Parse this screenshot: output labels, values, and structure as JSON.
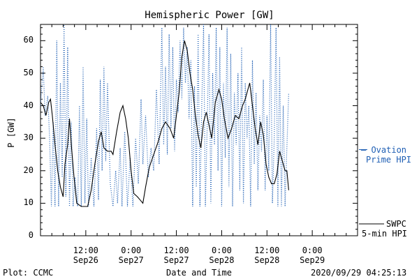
{
  "chart_data": {
    "type": "line",
    "title": "Hemispheric Power [GW]",
    "ylabel": "P [GW]",
    "xlabel": "Date and Time",
    "ylim": [
      0,
      65
    ],
    "yticks": [
      0,
      10,
      20,
      30,
      40,
      50,
      60
    ],
    "xlim_hours": [
      0,
      3.5
    ],
    "xticks": [
      {
        "time": "12:00",
        "date": "Sep26",
        "h": 0.5
      },
      {
        "time": "0:00",
        "date": "Sep27",
        "h": 1.0
      },
      {
        "time": "12:00",
        "date": "Sep27",
        "h": 1.5
      },
      {
        "time": "0:00",
        "date": "Sep28",
        "h": 2.0
      },
      {
        "time": "12:00",
        "date": "Sep28",
        "h": 2.5
      },
      {
        "time": "0:00",
        "date": "Sep29",
        "h": 3.0
      }
    ],
    "grid": false,
    "series": [
      {
        "name": "SWPC 5-min HPI",
        "color": "#000000",
        "style": "solid",
        "points": [
          [
            0.0,
            41
          ],
          [
            0.03,
            40
          ],
          [
            0.06,
            37
          ],
          [
            0.09,
            41
          ],
          [
            0.11,
            42
          ],
          [
            0.13,
            37
          ],
          [
            0.16,
            28
          ],
          [
            0.19,
            20
          ],
          [
            0.22,
            15
          ],
          [
            0.25,
            12
          ],
          [
            0.27,
            22
          ],
          [
            0.3,
            28
          ],
          [
            0.32,
            36
          ],
          [
            0.34,
            28
          ],
          [
            0.37,
            18
          ],
          [
            0.4,
            10
          ],
          [
            0.45,
            9
          ],
          [
            0.52,
            9
          ],
          [
            0.56,
            14
          ],
          [
            0.6,
            22
          ],
          [
            0.64,
            29
          ],
          [
            0.67,
            32
          ],
          [
            0.7,
            27
          ],
          [
            0.74,
            26
          ],
          [
            0.78,
            26
          ],
          [
            0.8,
            25
          ],
          [
            0.84,
            32
          ],
          [
            0.88,
            38
          ],
          [
            0.91,
            40
          ],
          [
            0.94,
            36
          ],
          [
            0.97,
            30
          ],
          [
            1.0,
            20
          ],
          [
            1.03,
            13
          ],
          [
            1.07,
            12
          ],
          [
            1.1,
            11
          ],
          [
            1.13,
            10
          ],
          [
            1.16,
            15
          ],
          [
            1.2,
            21
          ],
          [
            1.25,
            25
          ],
          [
            1.3,
            29
          ],
          [
            1.34,
            33
          ],
          [
            1.38,
            35
          ],
          [
            1.43,
            33
          ],
          [
            1.47,
            30
          ],
          [
            1.5,
            37
          ],
          [
            1.53,
            44
          ],
          [
            1.56,
            55
          ],
          [
            1.59,
            60
          ],
          [
            1.62,
            57
          ],
          [
            1.65,
            50
          ],
          [
            1.68,
            45
          ],
          [
            1.71,
            37
          ],
          [
            1.74,
            31
          ],
          [
            1.77,
            27
          ],
          [
            1.8,
            35
          ],
          [
            1.83,
            38
          ],
          [
            1.86,
            34
          ],
          [
            1.89,
            30
          ],
          [
            1.93,
            41
          ],
          [
            1.97,
            45
          ],
          [
            2.0,
            42
          ],
          [
            2.03,
            36
          ],
          [
            2.07,
            30
          ],
          [
            2.11,
            33
          ],
          [
            2.15,
            37
          ],
          [
            2.19,
            36
          ],
          [
            2.23,
            40
          ],
          [
            2.26,
            42
          ],
          [
            2.29,
            45
          ],
          [
            2.31,
            47
          ],
          [
            2.34,
            40
          ],
          [
            2.37,
            33
          ],
          [
            2.4,
            28
          ],
          [
            2.43,
            35
          ],
          [
            2.46,
            31
          ],
          [
            2.49,
            22
          ],
          [
            2.52,
            18
          ],
          [
            2.55,
            16
          ],
          [
            2.58,
            16
          ],
          [
            2.61,
            19
          ],
          [
            2.64,
            26
          ],
          [
            2.67,
            23
          ],
          [
            2.7,
            20
          ],
          [
            2.72,
            20
          ],
          [
            2.74,
            14
          ]
        ]
      },
      {
        "name": "Ovation Prime HPI",
        "color": "#1f5fb4",
        "style": "dotted",
        "points": [
          [
            0.0,
            40
          ],
          [
            0.03,
            52
          ],
          [
            0.05,
            37
          ],
          [
            0.08,
            43
          ],
          [
            0.1,
            30
          ],
          [
            0.12,
            9
          ],
          [
            0.14,
            35
          ],
          [
            0.16,
            9
          ],
          [
            0.18,
            60
          ],
          [
            0.2,
            9
          ],
          [
            0.22,
            47
          ],
          [
            0.24,
            18
          ],
          [
            0.26,
            65
          ],
          [
            0.28,
            12
          ],
          [
            0.3,
            58
          ],
          [
            0.32,
            9
          ],
          [
            0.34,
            35
          ],
          [
            0.36,
            9
          ],
          [
            0.38,
            18
          ],
          [
            0.41,
            9
          ],
          [
            0.43,
            40
          ],
          [
            0.45,
            9
          ],
          [
            0.47,
            52
          ],
          [
            0.49,
            10
          ],
          [
            0.51,
            36
          ],
          [
            0.53,
            9
          ],
          [
            0.56,
            24
          ],
          [
            0.59,
            9
          ],
          [
            0.62,
            33
          ],
          [
            0.64,
            11
          ],
          [
            0.66,
            48
          ],
          [
            0.68,
            20
          ],
          [
            0.7,
            52
          ],
          [
            0.72,
            23
          ],
          [
            0.74,
            47
          ],
          [
            0.77,
            16
          ],
          [
            0.8,
            9
          ],
          [
            0.83,
            20
          ],
          [
            0.85,
            10
          ],
          [
            0.88,
            27
          ],
          [
            0.9,
            9
          ],
          [
            0.93,
            32
          ],
          [
            0.96,
            9
          ],
          [
            0.99,
            24
          ],
          [
            1.02,
            9
          ],
          [
            1.05,
            30
          ],
          [
            1.08,
            16
          ],
          [
            1.11,
            42
          ],
          [
            1.13,
            22
          ],
          [
            1.16,
            37
          ],
          [
            1.19,
            18
          ],
          [
            1.22,
            27
          ],
          [
            1.25,
            20
          ],
          [
            1.28,
            45
          ],
          [
            1.31,
            22
          ],
          [
            1.34,
            64
          ],
          [
            1.36,
            28
          ],
          [
            1.38,
            52
          ],
          [
            1.4,
            25
          ],
          [
            1.42,
            62
          ],
          [
            1.44,
            33
          ],
          [
            1.46,
            58
          ],
          [
            1.48,
            26
          ],
          [
            1.5,
            48
          ],
          [
            1.52,
            38
          ],
          [
            1.54,
            60
          ],
          [
            1.56,
            42
          ],
          [
            1.58,
            64
          ],
          [
            1.6,
            47
          ],
          [
            1.62,
            58
          ],
          [
            1.64,
            36
          ],
          [
            1.66,
            54
          ],
          [
            1.68,
            9
          ],
          [
            1.7,
            46
          ],
          [
            1.72,
            15
          ],
          [
            1.74,
            62
          ],
          [
            1.76,
            9
          ],
          [
            1.78,
            40
          ],
          [
            1.8,
            65
          ],
          [
            1.82,
            9
          ],
          [
            1.84,
            34
          ],
          [
            1.86,
            62
          ],
          [
            1.88,
            10
          ],
          [
            1.9,
            50
          ],
          [
            1.92,
            28
          ],
          [
            1.94,
            64
          ],
          [
            1.96,
            20
          ],
          [
            1.98,
            58
          ],
          [
            2.0,
            9
          ],
          [
            2.02,
            47
          ],
          [
            2.04,
            24
          ],
          [
            2.06,
            64
          ],
          [
            2.08,
            15
          ],
          [
            2.1,
            56
          ],
          [
            2.12,
            9
          ],
          [
            2.14,
            44
          ],
          [
            2.16,
            28
          ],
          [
            2.18,
            50
          ],
          [
            2.2,
            14
          ],
          [
            2.22,
            58
          ],
          [
            2.24,
            10
          ],
          [
            2.26,
            47
          ],
          [
            2.28,
            30
          ],
          [
            2.3,
            40
          ],
          [
            2.32,
            9
          ],
          [
            2.34,
            54
          ],
          [
            2.36,
            22
          ],
          [
            2.38,
            44
          ],
          [
            2.4,
            14
          ],
          [
            2.42,
            37
          ],
          [
            2.44,
            26
          ],
          [
            2.46,
            48
          ],
          [
            2.48,
            14
          ],
          [
            2.5,
            37
          ],
          [
            2.52,
            20
          ],
          [
            2.54,
            65
          ],
          [
            2.56,
            10
          ],
          [
            2.58,
            30
          ],
          [
            2.6,
            64
          ],
          [
            2.62,
            9
          ],
          [
            2.64,
            55
          ],
          [
            2.66,
            9
          ],
          [
            2.68,
            40
          ],
          [
            2.7,
            9
          ],
          [
            2.72,
            27
          ],
          [
            2.74,
            44
          ]
        ]
      }
    ],
    "legend": [
      {
        "label_lines": [
          "— Ovation",
          "Prime HPI"
        ],
        "color": "#1f5fb4",
        "placement": "right"
      },
      {
        "label_lines": [
          "SWPC",
          "5-min HPI"
        ],
        "color": "#000000",
        "placement": "right-bottom"
      }
    ]
  },
  "footer": {
    "left": "Plot: CCMC",
    "center": "Date and Time",
    "right": "2020/09/29 04:25:13"
  }
}
